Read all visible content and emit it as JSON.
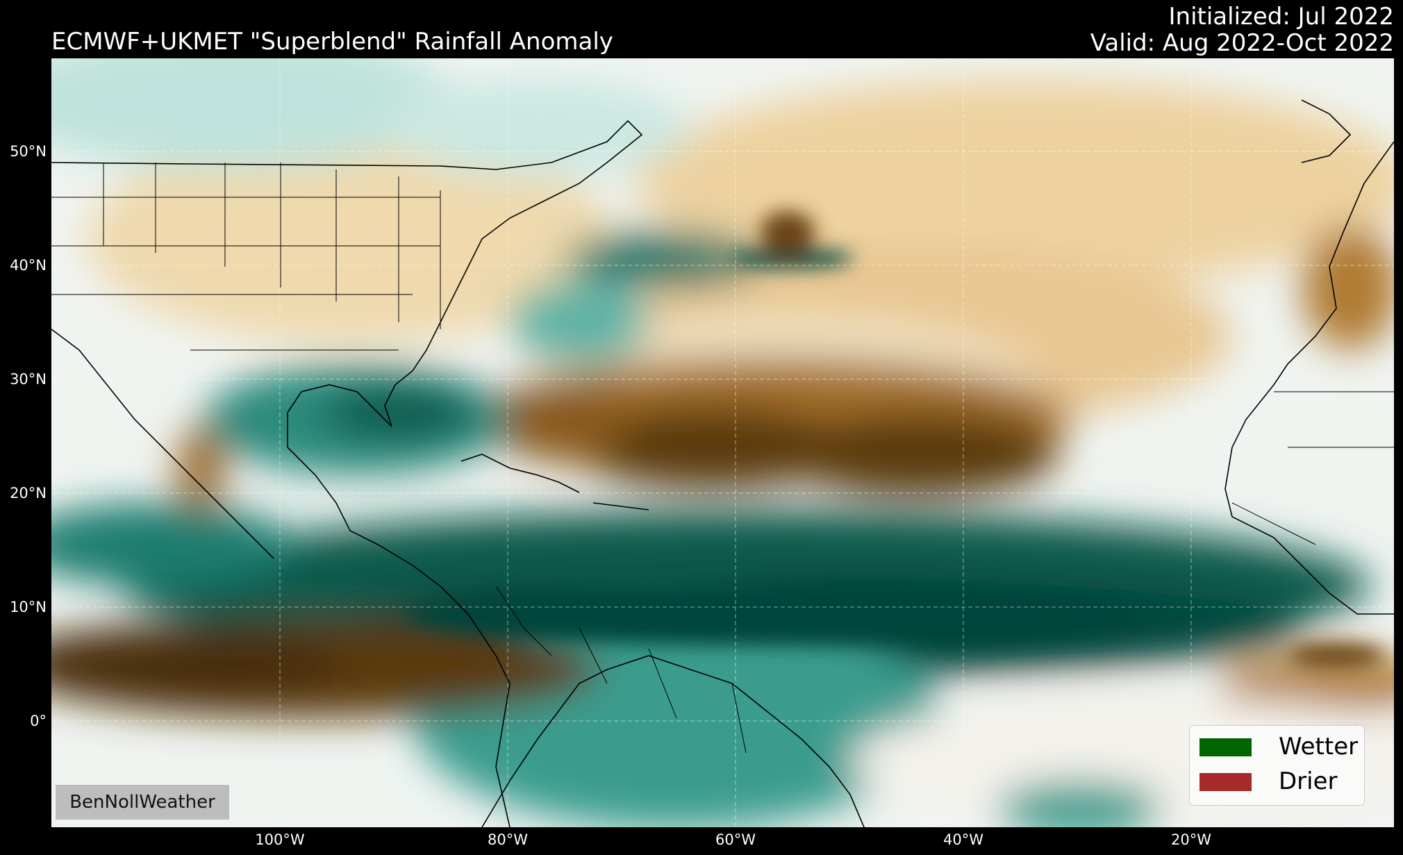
{
  "title": "ECMWF+UKMET \"Superblend\" Rainfall Anomaly",
  "initialized": "Initialized: Jul 2022",
  "valid": "Valid: Aug 2022-Oct 2022",
  "watermark": "BenNollWeather",
  "legend": [
    {
      "label": "Wetter",
      "color": "#006400"
    },
    {
      "label": "Drier",
      "color": "#a52a2a"
    }
  ],
  "lat_labels": [
    "50°N",
    "40°N",
    "30°N",
    "20°N",
    "10°N",
    "0°"
  ],
  "lon_labels": [
    "100°W",
    "80°W",
    "60°W",
    "40°W",
    "20°W"
  ],
  "colors": {
    "background": "#000000",
    "wet_dark": "#00453a",
    "wet": "#3f9e90",
    "wet_light": "#b8e0da",
    "dry_dark": "#4a2f0a",
    "dry": "#b07a33",
    "dry_light": "#f0dcb3",
    "neutral": "#f2f5f2"
  }
}
